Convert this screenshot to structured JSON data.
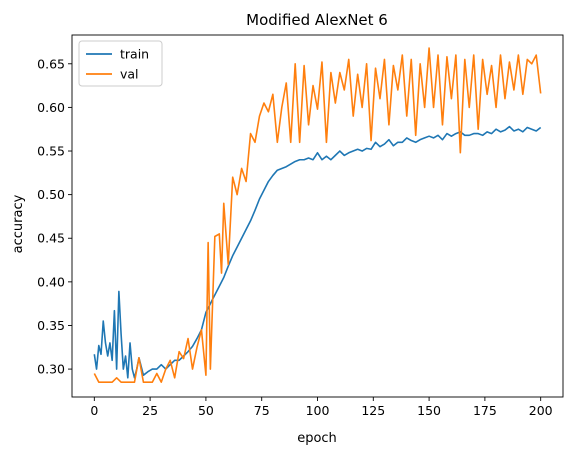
{
  "chart_data": {
    "type": "line",
    "title": "Modified AlexNet 6",
    "xlabel": "epoch",
    "ylabel": "accuracy",
    "xlim": [
      -10,
      210
    ],
    "ylim": [
      0.268,
      0.683
    ],
    "xticks": [
      0,
      25,
      50,
      75,
      100,
      125,
      150,
      175,
      200
    ],
    "yticks": [
      0.3,
      0.35,
      0.4,
      0.45,
      0.5,
      0.55,
      0.6,
      0.65
    ],
    "ytick_labels": [
      "0.30",
      "0.35",
      "0.40",
      "0.45",
      "0.50",
      "0.55",
      "0.60",
      "0.65"
    ],
    "grid": false,
    "legend": {
      "placement": "top-left",
      "entries": [
        "train",
        "val"
      ]
    },
    "series": [
      {
        "name": "train",
        "color": "#1f77b4",
        "x": [
          0,
          1,
          2,
          3,
          4,
          5,
          6,
          7,
          8,
          9,
          10,
          11,
          12,
          13,
          14,
          15,
          16,
          17,
          18,
          19,
          20,
          22,
          24,
          26,
          28,
          30,
          32,
          34,
          36,
          38,
          40,
          42,
          44,
          46,
          48,
          50,
          52,
          54,
          56,
          58,
          60,
          62,
          64,
          66,
          68,
          70,
          72,
          74,
          76,
          78,
          80,
          82,
          84,
          86,
          88,
          90,
          92,
          94,
          96,
          98,
          100,
          102,
          104,
          106,
          108,
          110,
          112,
          114,
          116,
          118,
          120,
          122,
          124,
          126,
          128,
          130,
          132,
          134,
          136,
          138,
          140,
          142,
          144,
          146,
          148,
          150,
          152,
          154,
          156,
          158,
          160,
          162,
          164,
          166,
          168,
          170,
          172,
          174,
          176,
          178,
          180,
          182,
          184,
          186,
          188,
          190,
          192,
          194,
          196,
          198,
          200
        ],
        "y": [
          0.317,
          0.3,
          0.327,
          0.317,
          0.355,
          0.33,
          0.315,
          0.33,
          0.31,
          0.367,
          0.3,
          0.389,
          0.34,
          0.3,
          0.315,
          0.29,
          0.33,
          0.3,
          0.29,
          0.3,
          0.313,
          0.293,
          0.297,
          0.3,
          0.3,
          0.305,
          0.3,
          0.305,
          0.31,
          0.31,
          0.315,
          0.32,
          0.326,
          0.335,
          0.345,
          0.365,
          0.375,
          0.385,
          0.395,
          0.405,
          0.418,
          0.43,
          0.44,
          0.45,
          0.46,
          0.47,
          0.482,
          0.495,
          0.505,
          0.515,
          0.522,
          0.528,
          0.53,
          0.532,
          0.535,
          0.538,
          0.54,
          0.54,
          0.542,
          0.54,
          0.548,
          0.54,
          0.544,
          0.54,
          0.545,
          0.55,
          0.545,
          0.548,
          0.55,
          0.552,
          0.55,
          0.553,
          0.552,
          0.56,
          0.555,
          0.558,
          0.563,
          0.556,
          0.56,
          0.56,
          0.565,
          0.562,
          0.56,
          0.563,
          0.565,
          0.567,
          0.565,
          0.568,
          0.563,
          0.57,
          0.567,
          0.57,
          0.572,
          0.568,
          0.568,
          0.57,
          0.57,
          0.568,
          0.572,
          0.57,
          0.575,
          0.572,
          0.574,
          0.578,
          0.573,
          0.575,
          0.572,
          0.577,
          0.575,
          0.573,
          0.577
        ]
      },
      {
        "name": "val",
        "color": "#ff7f0e",
        "x": [
          0,
          2,
          4,
          6,
          8,
          10,
          12,
          14,
          16,
          18,
          20,
          22,
          24,
          26,
          28,
          30,
          32,
          34,
          36,
          38,
          40,
          42,
          44,
          46,
          48,
          50,
          51,
          52,
          54,
          56,
          57,
          58,
          60,
          62,
          64,
          66,
          68,
          70,
          72,
          74,
          76,
          78,
          80,
          82,
          84,
          86,
          88,
          90,
          92,
          94,
          96,
          98,
          100,
          102,
          104,
          106,
          108,
          110,
          112,
          114,
          116,
          118,
          120,
          122,
          124,
          126,
          128,
          130,
          132,
          134,
          136,
          138,
          140,
          142,
          144,
          146,
          148,
          150,
          152,
          154,
          156,
          158,
          160,
          162,
          164,
          166,
          168,
          170,
          172,
          174,
          176,
          178,
          180,
          182,
          184,
          186,
          188,
          190,
          192,
          194,
          196,
          198,
          200
        ],
        "y": [
          0.295,
          0.285,
          0.285,
          0.285,
          0.285,
          0.29,
          0.285,
          0.285,
          0.285,
          0.285,
          0.313,
          0.285,
          0.285,
          0.285,
          0.295,
          0.285,
          0.3,
          0.31,
          0.29,
          0.32,
          0.312,
          0.335,
          0.3,
          0.325,
          0.345,
          0.293,
          0.445,
          0.3,
          0.452,
          0.455,
          0.41,
          0.49,
          0.42,
          0.52,
          0.5,
          0.53,
          0.515,
          0.57,
          0.56,
          0.59,
          0.605,
          0.595,
          0.615,
          0.56,
          0.6,
          0.628,
          0.56,
          0.65,
          0.56,
          0.648,
          0.58,
          0.625,
          0.598,
          0.652,
          0.56,
          0.64,
          0.605,
          0.64,
          0.62,
          0.655,
          0.59,
          0.638,
          0.6,
          0.65,
          0.562,
          0.645,
          0.61,
          0.655,
          0.58,
          0.648,
          0.62,
          0.66,
          0.59,
          0.655,
          0.568,
          0.65,
          0.6,
          0.668,
          0.6,
          0.66,
          0.58,
          0.658,
          0.61,
          0.66,
          0.548,
          0.655,
          0.6,
          0.66,
          0.575,
          0.655,
          0.615,
          0.648,
          0.6,
          0.66,
          0.61,
          0.652,
          0.62,
          0.66,
          0.615,
          0.655,
          0.65,
          0.66,
          0.616
        ]
      }
    ]
  }
}
